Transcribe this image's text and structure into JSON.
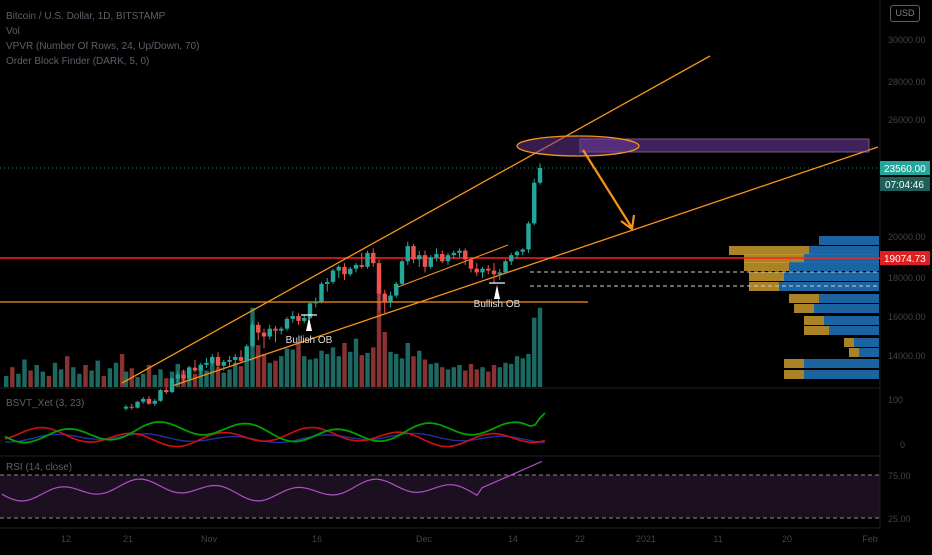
{
  "legend": {
    "main": "Bitcoin / U.S. Dollar, 1D, BITSTAMP",
    "vol": "Vol",
    "vpvr": "VPVR (Number Of Rows, 24, Up/Down, 70)",
    "obi": "Order Block Finder (DARK, 5, 0)"
  },
  "currency": "USD",
  "chart_data": {
    "type": "candlestick",
    "title": "Bitcoin / U.S. Dollar, 1D, BITSTAMP",
    "price_axis": {
      "ticks": [
        "30000.00",
        "28000.00",
        "26000.00",
        "20000.00",
        "18000.00",
        "16000.00",
        "14000.00"
      ]
    },
    "price_labels": {
      "last": "23560.00",
      "countdown": "07:04:46",
      "red_line": "19074.73"
    },
    "x_ticks": [
      "12",
      "21",
      "Nov",
      "16",
      "Dec",
      "14",
      "22",
      "2021",
      "11",
      "20",
      "Feb"
    ],
    "candles": [
      {
        "o": 11300,
        "h": 11500,
        "l": 11200,
        "c": 11400
      },
      {
        "o": 11400,
        "h": 11550,
        "l": 11250,
        "c": 11350
      },
      {
        "o": 11350,
        "h": 11700,
        "l": 11300,
        "c": 11650
      },
      {
        "o": 11650,
        "h": 11900,
        "l": 11550,
        "c": 11800
      },
      {
        "o": 11800,
        "h": 11950,
        "l": 11500,
        "c": 11550
      },
      {
        "o": 11550,
        "h": 11800,
        "l": 11450,
        "c": 11700
      },
      {
        "o": 11700,
        "h": 12300,
        "l": 11650,
        "c": 12250
      },
      {
        "o": 12250,
        "h": 12400,
        "l": 12050,
        "c": 12150
      },
      {
        "o": 12150,
        "h": 12900,
        "l": 12100,
        "c": 12850
      },
      {
        "o": 12850,
        "h": 13200,
        "l": 12650,
        "c": 13050
      },
      {
        "o": 13050,
        "h": 13300,
        "l": 12700,
        "c": 12850
      },
      {
        "o": 12850,
        "h": 13500,
        "l": 12800,
        "c": 13400
      },
      {
        "o": 13400,
        "h": 13800,
        "l": 13150,
        "c": 13250
      },
      {
        "o": 13250,
        "h": 13650,
        "l": 13050,
        "c": 13550
      },
      {
        "o": 13550,
        "h": 13900,
        "l": 13400,
        "c": 13650
      },
      {
        "o": 13650,
        "h": 14100,
        "l": 13500,
        "c": 13950
      },
      {
        "o": 13950,
        "h": 14200,
        "l": 13350,
        "c": 13500
      },
      {
        "o": 13500,
        "h": 13800,
        "l": 13250,
        "c": 13700
      },
      {
        "o": 13700,
        "h": 14000,
        "l": 13500,
        "c": 13800
      },
      {
        "o": 13800,
        "h": 14100,
        "l": 13600,
        "c": 13950
      },
      {
        "o": 13950,
        "h": 14300,
        "l": 13600,
        "c": 13750
      },
      {
        "o": 13750,
        "h": 14600,
        "l": 13700,
        "c": 14500
      },
      {
        "o": 14500,
        "h": 15800,
        "l": 14450,
        "c": 15600
      },
      {
        "o": 15600,
        "h": 15750,
        "l": 14800,
        "c": 15200
      },
      {
        "o": 15200,
        "h": 15400,
        "l": 14400,
        "c": 15000
      },
      {
        "o": 15000,
        "h": 15600,
        "l": 14850,
        "c": 15400
      },
      {
        "o": 15400,
        "h": 15550,
        "l": 14700,
        "c": 15300
      },
      {
        "o": 15300,
        "h": 15500,
        "l": 15100,
        "c": 15400
      },
      {
        "o": 15400,
        "h": 16000,
        "l": 15300,
        "c": 15900
      },
      {
        "o": 15900,
        "h": 16300,
        "l": 15700,
        "c": 16050
      },
      {
        "o": 16050,
        "h": 16200,
        "l": 15600,
        "c": 15800
      },
      {
        "o": 15800,
        "h": 16100,
        "l": 15700,
        "c": 15950
      },
      {
        "o": 15950,
        "h": 16800,
        "l": 15900,
        "c": 16700
      },
      {
        "o": 16700,
        "h": 17000,
        "l": 16500,
        "c": 16800
      },
      {
        "o": 16800,
        "h": 17800,
        "l": 16700,
        "c": 17700
      },
      {
        "o": 17700,
        "h": 18000,
        "l": 17300,
        "c": 17800
      },
      {
        "o": 17800,
        "h": 18500,
        "l": 17700,
        "c": 18400
      },
      {
        "o": 18400,
        "h": 18700,
        "l": 18000,
        "c": 18600
      },
      {
        "o": 18600,
        "h": 18800,
        "l": 17900,
        "c": 18200
      },
      {
        "o": 18200,
        "h": 18600,
        "l": 18100,
        "c": 18500
      },
      {
        "o": 18500,
        "h": 18800,
        "l": 18300,
        "c": 18700
      },
      {
        "o": 18700,
        "h": 19300,
        "l": 18500,
        "c": 18600
      },
      {
        "o": 18600,
        "h": 19400,
        "l": 18500,
        "c": 19300
      },
      {
        "o": 19300,
        "h": 19500,
        "l": 18600,
        "c": 18800
      },
      {
        "o": 18800,
        "h": 19000,
        "l": 16300,
        "c": 17200
      },
      {
        "o": 17200,
        "h": 17400,
        "l": 16200,
        "c": 16800
      },
      {
        "o": 16800,
        "h": 17300,
        "l": 16500,
        "c": 17100
      },
      {
        "o": 17100,
        "h": 17800,
        "l": 17000,
        "c": 17700
      },
      {
        "o": 17700,
        "h": 19000,
        "l": 17600,
        "c": 18900
      },
      {
        "o": 18900,
        "h": 19800,
        "l": 18700,
        "c": 19600
      },
      {
        "o": 19600,
        "h": 19700,
        "l": 18800,
        "c": 19000
      },
      {
        "o": 19000,
        "h": 19400,
        "l": 18600,
        "c": 19200
      },
      {
        "o": 19200,
        "h": 19400,
        "l": 18300,
        "c": 18600
      },
      {
        "o": 18600,
        "h": 19200,
        "l": 18500,
        "c": 19100
      },
      {
        "o": 19100,
        "h": 19500,
        "l": 18900,
        "c": 19250
      },
      {
        "o": 19250,
        "h": 19400,
        "l": 18800,
        "c": 18900
      },
      {
        "o": 18900,
        "h": 19300,
        "l": 18700,
        "c": 19200
      },
      {
        "o": 19200,
        "h": 19400,
        "l": 19000,
        "c": 19300
      },
      {
        "o": 19300,
        "h": 19500,
        "l": 19100,
        "c": 19400
      },
      {
        "o": 19400,
        "h": 19500,
        "l": 18700,
        "c": 19000
      },
      {
        "o": 19000,
        "h": 19100,
        "l": 18300,
        "c": 18500
      },
      {
        "o": 18500,
        "h": 18800,
        "l": 18100,
        "c": 18300
      },
      {
        "o": 18300,
        "h": 18600,
        "l": 18000,
        "c": 18500
      },
      {
        "o": 18500,
        "h": 18700,
        "l": 18200,
        "c": 18400
      },
      {
        "o": 18400,
        "h": 18800,
        "l": 17700,
        "c": 18200
      },
      {
        "o": 18200,
        "h": 18500,
        "l": 17900,
        "c": 18300
      },
      {
        "o": 18300,
        "h": 19000,
        "l": 18200,
        "c": 18900
      },
      {
        "o": 18900,
        "h": 19300,
        "l": 18700,
        "c": 19200
      },
      {
        "o": 19200,
        "h": 19400,
        "l": 19000,
        "c": 19350
      },
      {
        "o": 19350,
        "h": 19500,
        "l": 19200,
        "c": 19450
      },
      {
        "o": 19450,
        "h": 20800,
        "l": 19300,
        "c": 20700
      },
      {
        "o": 20700,
        "h": 23000,
        "l": 20600,
        "c": 22800
      },
      {
        "o": 22800,
        "h": 23800,
        "l": 22700,
        "c": 23560
      }
    ],
    "volume_levels": [
      0.14,
      0.17,
      0.09,
      0.12,
      0.2,
      0.11,
      0.16,
      0.08,
      0.14,
      0.21,
      0.15,
      0.18,
      0.12,
      0.2,
      0.15,
      0.25,
      0.18,
      0.13,
      0.16,
      0.22,
      0.19,
      0.3,
      0.72,
      0.38,
      0.3,
      0.22,
      0.24,
      0.28,
      0.35,
      0.34,
      0.4,
      0.28,
      0.25,
      0.26,
      0.33,
      0.3,
      0.36,
      0.28,
      0.4,
      0.32,
      0.44,
      0.29,
      0.31,
      0.36,
      0.92,
      0.5,
      0.32,
      0.3,
      0.26,
      0.4,
      0.28,
      0.33,
      0.25,
      0.21,
      0.22,
      0.18,
      0.16,
      0.18,
      0.2,
      0.15,
      0.21,
      0.16,
      0.18,
      0.14,
      0.2,
      0.18,
      0.22,
      0.21,
      0.28,
      0.26,
      0.3,
      0.63,
      0.72
    ],
    "annotations": [
      "Bullish OB",
      "Bullish OB"
    ],
    "bsvt_legend": "BSVT_Xet (3, 23)",
    "bsvt_axis": [
      "100",
      "0"
    ],
    "rsi_legend": "RSI (14, close)",
    "rsi_axis": [
      "75.00",
      "25.00"
    ],
    "colors": {
      "up": "#26a69a",
      "down": "#ef5350",
      "trend": "#f7931a",
      "level": "#ff2020",
      "vp_up": "#1e6fb3",
      "vp_down": "#c99a2e",
      "rsi_line": "#b04fc4",
      "bsvt_green": "#00a000",
      "bsvt_red": "#d01010",
      "bsvt_blue": "#2030a0",
      "zone": "#6c3a9a"
    }
  }
}
